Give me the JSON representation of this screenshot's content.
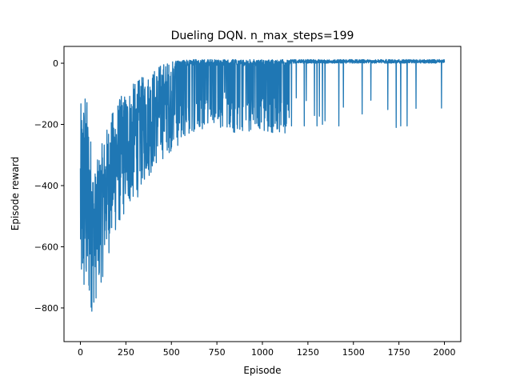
{
  "chart_data": {
    "type": "line",
    "title": "Dueling DQN. n_max_steps=199",
    "xlabel": "Episode",
    "ylabel": "Episode reward",
    "xlim": [
      -90,
      2090
    ],
    "ylim": [
      -910,
      55
    ],
    "xticks": [
      0,
      250,
      500,
      750,
      1000,
      1250,
      1500,
      1750,
      2000
    ],
    "yticks": [
      -800,
      -600,
      -400,
      -200,
      0
    ],
    "grid": false,
    "legend": "none",
    "series": [
      {
        "color": "#1f77b4",
        "x_range": [
          0,
          2000
        ],
        "trend": {
          "episode": [
            0,
            25,
            50,
            75,
            100,
            150,
            200,
            250,
            300,
            350,
            400,
            450,
            500,
            600,
            700,
            800,
            900,
            1000,
            1100,
            1200,
            1400,
            1600,
            1800,
            2000
          ],
          "lower": [
            -850,
            -860,
            -840,
            -800,
            -760,
            -640,
            -560,
            -500,
            -460,
            -400,
            -360,
            -320,
            -290,
            -250,
            -220,
            -200,
            -10,
            -5,
            -5,
            -5,
            0,
            0,
            0,
            0
          ],
          "upper": [
            -140,
            -60,
            -180,
            -360,
            -300,
            -200,
            -120,
            -90,
            -60,
            -40,
            -20,
            5,
            10,
            12,
            12,
            12,
            12,
            12,
            12,
            12,
            12,
            12,
            12,
            12
          ]
        },
        "notable_dips": [
          {
            "episode": 1010,
            "reward": -220
          },
          {
            "episode": 1050,
            "reward": -225
          },
          {
            "episode": 1080,
            "reward": -215
          },
          {
            "episode": 1120,
            "reward": -200
          },
          {
            "episode": 1160,
            "reward": -205
          },
          {
            "episode": 1230,
            "reward": -205
          },
          {
            "episode": 1300,
            "reward": -205
          },
          {
            "episode": 1330,
            "reward": -200
          },
          {
            "episode": 1420,
            "reward": -205
          },
          {
            "episode": 1735,
            "reward": -210
          },
          {
            "episode": 1760,
            "reward": -205
          },
          {
            "episode": 1795,
            "reward": -205
          }
        ]
      }
    ]
  }
}
